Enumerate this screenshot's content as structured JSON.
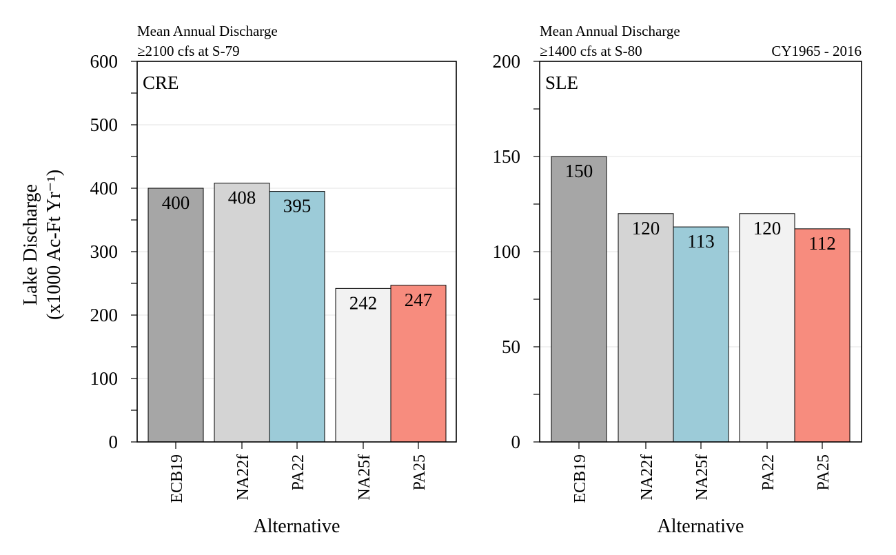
{
  "chart_data": [
    {
      "type": "bar",
      "panel_label": "CRE",
      "header_lines": [
        "Mean Annual Discharge",
        "≥2100 cfs at S-79"
      ],
      "header_right": "",
      "ylabel_lines": [
        "Lake Discharge",
        "(x1000 Ac-Ft Yr⁻¹)"
      ],
      "xlabel": "Alternative",
      "ylim": [
        0,
        600
      ],
      "yticks": [
        0,
        100,
        200,
        300,
        400,
        500,
        600
      ],
      "grid": true,
      "categories": [
        "ECB19",
        "NA22f",
        "PA22",
        "NA25f",
        "PA25"
      ],
      "values": [
        400,
        408,
        395,
        242,
        247
      ],
      "colors": [
        "#a6a6a6",
        "#d4d4d4",
        "#9ccbd8",
        "#f2f2f2",
        "#f78c7e"
      ]
    },
    {
      "type": "bar",
      "panel_label": "SLE",
      "header_lines": [
        "Mean Annual Discharge",
        "≥1400 cfs at S-80"
      ],
      "header_right": "CY1965 - 2016",
      "ylabel_lines": [],
      "xlabel": "Alternative",
      "ylim": [
        0,
        200
      ],
      "yticks": [
        0,
        50,
        100,
        150,
        200
      ],
      "grid": true,
      "categories": [
        "ECB19",
        "NA22f",
        "NA25f",
        "PA22",
        "PA25"
      ],
      "values": [
        150,
        120,
        113,
        120,
        112
      ],
      "colors": [
        "#a6a6a6",
        "#d4d4d4",
        "#9ccbd8",
        "#f2f2f2",
        "#f78c7e"
      ]
    }
  ]
}
